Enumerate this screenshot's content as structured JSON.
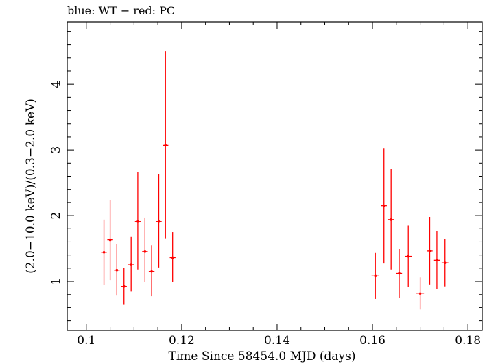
{
  "header": {
    "title": "blue: WT − red: PC"
  },
  "chart_data": {
    "type": "scatter",
    "title": "blue: WT − red: PC",
    "xlabel": "Time Since 58454.0 MJD (days)",
    "ylabel": "(2.0−10.0 keV)/(0.3−2.0 keV)",
    "xlim": [
      0.096,
      0.183
    ],
    "ylim": [
      0.25,
      4.95
    ],
    "x_ticks": [
      0.1,
      0.12,
      0.14,
      0.16,
      0.18
    ],
    "x_tick_labels": [
      "0.1",
      "0.12",
      "0.14",
      "0.16",
      "0.18"
    ],
    "y_ticks": [
      1,
      2,
      3,
      4
    ],
    "y_tick_labels": [
      "1",
      "2",
      "3",
      "4"
    ],
    "grid": false,
    "colors": {
      "PC": "#ff0000",
      "WT": "#0000ff"
    },
    "series": [
      {
        "name": "PC",
        "points": [
          {
            "x": 0.1037,
            "y": 1.44,
            "xerr": 0.0006,
            "ylo": 0.94,
            "yhi": 1.94
          },
          {
            "x": 0.105,
            "y": 1.63,
            "xerr": 0.0006,
            "ylo": 1.02,
            "yhi": 2.23
          },
          {
            "x": 0.1064,
            "y": 1.17,
            "xerr": 0.0006,
            "ylo": 0.79,
            "yhi": 1.57
          },
          {
            "x": 0.1079,
            "y": 0.92,
            "xerr": 0.0006,
            "ylo": 0.64,
            "yhi": 1.2
          },
          {
            "x": 0.1094,
            "y": 1.25,
            "xerr": 0.0006,
            "ylo": 0.84,
            "yhi": 1.68
          },
          {
            "x": 0.1108,
            "y": 1.91,
            "xerr": 0.0006,
            "ylo": 1.18,
            "yhi": 2.66
          },
          {
            "x": 0.1123,
            "y": 1.45,
            "xerr": 0.0006,
            "ylo": 0.99,
            "yhi": 1.97
          },
          {
            "x": 0.1137,
            "y": 1.15,
            "xerr": 0.0006,
            "ylo": 0.77,
            "yhi": 1.55
          },
          {
            "x": 0.1152,
            "y": 1.91,
            "xerr": 0.0006,
            "ylo": 1.21,
            "yhi": 2.63
          },
          {
            "x": 0.1166,
            "y": 3.07,
            "xerr": 0.0006,
            "ylo": 1.65,
            "yhi": 4.5
          },
          {
            "x": 0.1181,
            "y": 1.36,
            "xerr": 0.0006,
            "ylo": 0.99,
            "yhi": 1.75
          },
          {
            "x": 0.1606,
            "y": 1.08,
            "xerr": 0.0008,
            "ylo": 0.73,
            "yhi": 1.43
          },
          {
            "x": 0.1624,
            "y": 2.15,
            "xerr": 0.0006,
            "ylo": 1.27,
            "yhi": 3.02
          },
          {
            "x": 0.1639,
            "y": 1.94,
            "xerr": 0.0006,
            "ylo": 1.18,
            "yhi": 2.71
          },
          {
            "x": 0.1656,
            "y": 1.12,
            "xerr": 0.0006,
            "ylo": 0.75,
            "yhi": 1.49
          },
          {
            "x": 0.1675,
            "y": 1.38,
            "xerr": 0.0007,
            "ylo": 0.91,
            "yhi": 1.85
          },
          {
            "x": 0.17,
            "y": 0.81,
            "xerr": 0.0008,
            "ylo": 0.57,
            "yhi": 1.06
          },
          {
            "x": 0.172,
            "y": 1.46,
            "xerr": 0.0006,
            "ylo": 0.95,
            "yhi": 1.98
          },
          {
            "x": 0.1735,
            "y": 1.32,
            "xerr": 0.0006,
            "ylo": 0.88,
            "yhi": 1.77
          },
          {
            "x": 0.1752,
            "y": 1.28,
            "xerr": 0.0007,
            "ylo": 0.92,
            "yhi": 1.64
          }
        ]
      }
    ]
  }
}
